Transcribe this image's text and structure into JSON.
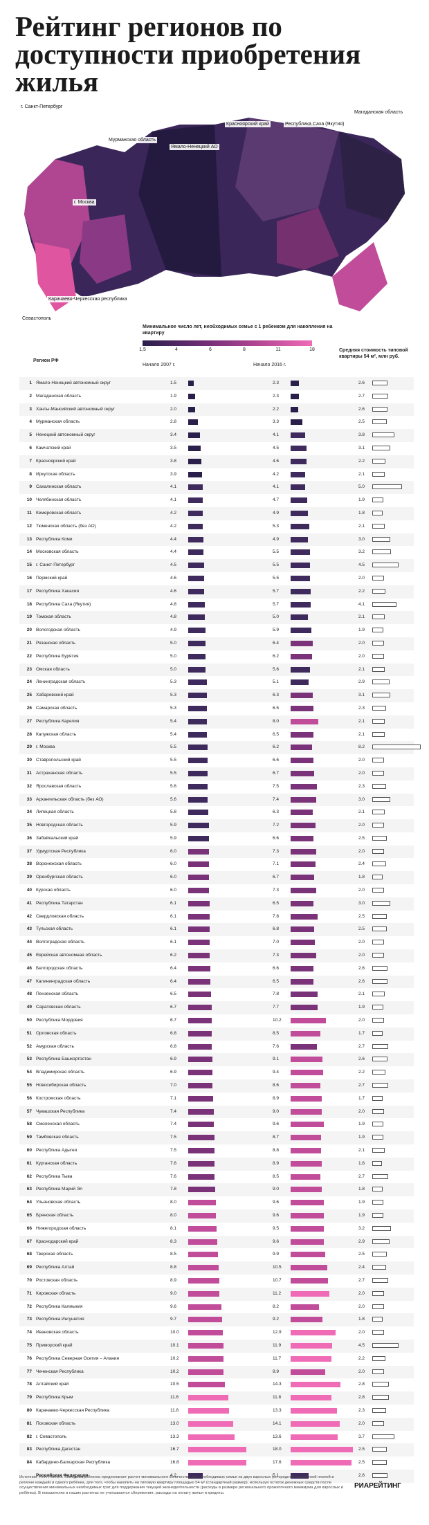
{
  "title": "Рейтинг регионов по доступности приобретения жилья",
  "map_labels": {
    "spb": "г. Санкт-Петербург",
    "murmansk": "Мурманская область",
    "yamal": "Ямало-Ненецкий АО",
    "krasnoyarsk": "Красноярский край",
    "sakha": "Республика Саха (Якутия)",
    "magadan": "Магаданская область",
    "moscow": "г. Москва",
    "karachay": "Карачаево-Черкесская республика",
    "sevastopol": "Севастополь"
  },
  "colors": {
    "dark": "#2a1f4a",
    "mid": "#6a2c72",
    "pink": "#e0559f",
    "light_pink": "#f06bb6"
  },
  "header": {
    "region": "Регион РФ",
    "years": "Минимальное число лет, необходимых семье с 1 ребенком для накопления на квартиру",
    "y2007": "Начало 2007 г.",
    "y2016": "Начало 2016 г.",
    "price": "Средняя стоимость типовой квартиры 54 м², млн руб.",
    "scale_ticks": [
      "1,5",
      "4",
      "6",
      "8",
      "11",
      "18"
    ]
  },
  "chart_data": {
    "type": "table",
    "rows": [
      {
        "n": "1",
        "region": "Ямало-Ненецкий автономный округ",
        "y2007": 1.5,
        "y2016": 2.3,
        "price": 2.6
      },
      {
        "n": "2",
        "region": "Магаданская область",
        "y2007": 1.9,
        "y2016": 2.3,
        "price": 2.7
      },
      {
        "n": "3",
        "region": "Ханты-Мансийский автономный округ",
        "y2007": 2.0,
        "y2016": 2.2,
        "price": 2.6
      },
      {
        "n": "4",
        "region": "Мурманская область",
        "y2007": 2.8,
        "y2016": 3.3,
        "price": 2.5
      },
      {
        "n": "5",
        "region": "Ненецкий автономный округ",
        "y2007": 3.4,
        "y2016": 4.1,
        "price": 3.8
      },
      {
        "n": "6",
        "region": "Камчатский край",
        "y2007": 3.5,
        "y2016": 4.5,
        "price": 3.1
      },
      {
        "n": "7",
        "region": "Красноярский край",
        "y2007": 3.8,
        "y2016": 4.6,
        "price": 2.2
      },
      {
        "n": "8",
        "region": "Иркутская область",
        "y2007": 3.9,
        "y2016": 4.2,
        "price": 2.1
      },
      {
        "n": "9",
        "region": "Сахалинская область",
        "y2007": 4.1,
        "y2016": 4.1,
        "price": 5.0
      },
      {
        "n": "10",
        "region": "Челябинская область",
        "y2007": 4.1,
        "y2016": 4.7,
        "price": 1.9
      },
      {
        "n": "11",
        "region": "Кемеровская область",
        "y2007": 4.2,
        "y2016": 4.9,
        "price": 1.8
      },
      {
        "n": "12",
        "region": "Тюменская область (без АО)",
        "y2007": 4.2,
        "y2016": 5.3,
        "price": 2.1
      },
      {
        "n": "13",
        "region": "Республика Коми",
        "y2007": 4.4,
        "y2016": 4.9,
        "price": 3.0
      },
      {
        "n": "14",
        "region": "Московская область",
        "y2007": 4.4,
        "y2016": 5.5,
        "price": 3.2
      },
      {
        "n": "15",
        "region": "г. Санкт-Петербург",
        "y2007": 4.5,
        "y2016": 5.5,
        "price": 4.5
      },
      {
        "n": "16",
        "region": "Пермский край",
        "y2007": 4.6,
        "y2016": 5.5,
        "price": 2.0
      },
      {
        "n": "17",
        "region": "Республика Хакасия",
        "y2007": 4.6,
        "y2016": 5.7,
        "price": 2.2
      },
      {
        "n": "18",
        "region": "Республика Саха (Якутия)",
        "y2007": 4.8,
        "y2016": 5.7,
        "price": 4.1
      },
      {
        "n": "19",
        "region": "Томская область",
        "y2007": 4.8,
        "y2016": 5.0,
        "price": 2.1
      },
      {
        "n": "20",
        "region": "Вологодская область",
        "y2007": 4.9,
        "y2016": 5.9,
        "price": 1.9
      },
      {
        "n": "21",
        "region": "Рязанская область",
        "y2007": 5.0,
        "y2016": 6.4,
        "price": 2.0
      },
      {
        "n": "22",
        "region": "Республика Бурятия",
        "y2007": 5.0,
        "y2016": 6.2,
        "price": 2.0
      },
      {
        "n": "23",
        "region": "Омская область",
        "y2007": 5.0,
        "y2016": 5.6,
        "price": 2.1
      },
      {
        "n": "24",
        "region": "Ленинградская область",
        "y2007": 5.3,
        "y2016": 5.1,
        "price": 2.9
      },
      {
        "n": "25",
        "region": "Хабаровский край",
        "y2007": 5.3,
        "y2016": 6.3,
        "price": 3.1
      },
      {
        "n": "26",
        "region": "Самарская область",
        "y2007": 5.3,
        "y2016": 6.5,
        "price": 2.3
      },
      {
        "n": "27",
        "region": "Республика Карелия",
        "y2007": 5.4,
        "y2016": 8.0,
        "price": 2.1
      },
      {
        "n": "28",
        "region": "Калужская область",
        "y2007": 5.4,
        "y2016": 6.5,
        "price": 2.1
      },
      {
        "n": "29",
        "region": "г. Москва",
        "y2007": 5.5,
        "y2016": 6.2,
        "price": 8.2
      },
      {
        "n": "30",
        "region": "Ставропольский край",
        "y2007": 5.5,
        "y2016": 6.6,
        "price": 2.0
      },
      {
        "n": "31",
        "region": "Астраханская область",
        "y2007": 5.5,
        "y2016": 6.7,
        "price": 2.0
      },
      {
        "n": "32",
        "region": "Ярославская область",
        "y2007": 5.6,
        "y2016": 7.5,
        "price": 2.3
      },
      {
        "n": "33",
        "region": "Архангельская область (без АО)",
        "y2007": 5.6,
        "y2016": 7.4,
        "price": 3.0
      },
      {
        "n": "34",
        "region": "Липецкая область",
        "y2007": 5.8,
        "y2016": 6.3,
        "price": 2.1
      },
      {
        "n": "35",
        "region": "Новгородская область",
        "y2007": 5.9,
        "y2016": 7.2,
        "price": 2.0
      },
      {
        "n": "36",
        "region": "Забайкальский край",
        "y2007": 5.9,
        "y2016": 6.6,
        "price": 2.5
      },
      {
        "n": "37",
        "region": "Удмуртская Республика",
        "y2007": 6.0,
        "y2016": 7.3,
        "price": 2.0
      },
      {
        "n": "38",
        "region": "Воронежская область",
        "y2007": 6.0,
        "y2016": 7.1,
        "price": 2.4
      },
      {
        "n": "39",
        "region": "Оренбургская область",
        "y2007": 6.0,
        "y2016": 6.7,
        "price": 1.8
      },
      {
        "n": "40",
        "region": "Курская область",
        "y2007": 6.0,
        "y2016": 7.3,
        "price": 2.0
      },
      {
        "n": "41",
        "region": "Республика Татарстан",
        "y2007": 6.1,
        "y2016": 6.5,
        "price": 3.0
      },
      {
        "n": "42",
        "region": "Свердловская область",
        "y2007": 6.1,
        "y2016": 7.8,
        "price": 2.5
      },
      {
        "n": "43",
        "region": "Тульская область",
        "y2007": 6.1,
        "y2016": 6.8,
        "price": 2.5
      },
      {
        "n": "44",
        "region": "Волгоградская область",
        "y2007": 6.1,
        "y2016": 7.0,
        "price": 2.0
      },
      {
        "n": "45",
        "region": "Еврейская автономная область",
        "y2007": 6.2,
        "y2016": 7.3,
        "price": 2.0
      },
      {
        "n": "46",
        "region": "Белгородская область",
        "y2007": 6.4,
        "y2016": 6.6,
        "price": 2.6
      },
      {
        "n": "47",
        "region": "Калининградская область",
        "y2007": 6.4,
        "y2016": 6.5,
        "price": 2.6
      },
      {
        "n": "48",
        "region": "Пензенская область",
        "y2007": 6.5,
        "y2016": 7.8,
        "price": 2.1
      },
      {
        "n": "49",
        "region": "Саратовская область",
        "y2007": 6.7,
        "y2016": 7.7,
        "price": 1.9
      },
      {
        "n": "50",
        "region": "Республика Мордовия",
        "y2007": 6.7,
        "y2016": 10.2,
        "price": 2.0
      },
      {
        "n": "51",
        "region": "Орловская область",
        "y2007": 6.8,
        "y2016": 8.5,
        "price": 1.7
      },
      {
        "n": "52",
        "region": "Амурская область",
        "y2007": 6.8,
        "y2016": 7.6,
        "price": 2.7
      },
      {
        "n": "53",
        "region": "Республика Башкортостан",
        "y2007": 6.9,
        "y2016": 9.1,
        "price": 2.6
      },
      {
        "n": "54",
        "region": "Владимирская область",
        "y2007": 6.9,
        "y2016": 9.4,
        "price": 2.2
      },
      {
        "n": "55",
        "region": "Новосибирская область",
        "y2007": 7.0,
        "y2016": 8.6,
        "price": 2.7
      },
      {
        "n": "56",
        "region": "Костромская область",
        "y2007": 7.1,
        "y2016": 8.9,
        "price": 1.7
      },
      {
        "n": "57",
        "region": "Чувашская Республика",
        "y2007": 7.4,
        "y2016": 9.0,
        "price": 2.0
      },
      {
        "n": "58",
        "region": "Смоленская область",
        "y2007": 7.4,
        "y2016": 9.6,
        "price": 1.9
      },
      {
        "n": "59",
        "region": "Тамбовская область",
        "y2007": 7.5,
        "y2016": 8.7,
        "price": 1.9
      },
      {
        "n": "60",
        "region": "Республика Адыгея",
        "y2007": 7.5,
        "y2016": 8.8,
        "price": 2.1
      },
      {
        "n": "61",
        "region": "Курганская область",
        "y2007": 7.6,
        "y2016": 8.9,
        "price": 1.6
      },
      {
        "n": "62",
        "region": "Республика Тыва",
        "y2007": 7.6,
        "y2016": 8.5,
        "price": 2.7
      },
      {
        "n": "63",
        "region": "Республика Марий Эл",
        "y2007": 7.8,
        "y2016": 9.0,
        "price": 1.8
      },
      {
        "n": "64",
        "region": "Ульяновская область",
        "y2007": 8.0,
        "y2016": 9.6,
        "price": 1.9
      },
      {
        "n": "65",
        "region": "Брянская область",
        "y2007": 8.0,
        "y2016": 9.6,
        "price": 1.9
      },
      {
        "n": "66",
        "region": "Нижегородская область",
        "y2007": 8.1,
        "y2016": 9.5,
        "price": 3.2
      },
      {
        "n": "67",
        "region": "Краснодарский край",
        "y2007": 8.3,
        "y2016": 9.6,
        "price": 2.9
      },
      {
        "n": "68",
        "region": "Тверская область",
        "y2007": 8.5,
        "y2016": 9.9,
        "price": 2.5
      },
      {
        "n": "69",
        "region": "Республика Алтай",
        "y2007": 8.8,
        "y2016": 10.5,
        "price": 2.4
      },
      {
        "n": "70",
        "region": "Ростовская область",
        "y2007": 8.9,
        "y2016": 10.7,
        "price": 2.7
      },
      {
        "n": "71",
        "region": "Кировская область",
        "y2007": 9.0,
        "y2016": 11.2,
        "price": 2.0
      },
      {
        "n": "72",
        "region": "Республика Калмыкия",
        "y2007": 9.6,
        "y2016": 8.2,
        "price": 2.0
      },
      {
        "n": "73",
        "region": "Республика Ингушетия",
        "y2007": 9.7,
        "y2016": 9.2,
        "price": 1.8
      },
      {
        "n": "74",
        "region": "Ивановская область",
        "y2007": 10.0,
        "y2016": 12.9,
        "price": 2.0
      },
      {
        "n": "75",
        "region": "Приморский край",
        "y2007": 10.1,
        "y2016": 11.9,
        "price": 4.5
      },
      {
        "n": "76",
        "region": "Республика Северная Осетия – Алания",
        "y2007": 10.2,
        "y2016": 11.7,
        "price": 2.2
      },
      {
        "n": "77",
        "region": "Чеченская Республика",
        "y2007": 10.2,
        "y2016": 9.9,
        "price": 2.0
      },
      {
        "n": "78",
        "region": "Алтайский край",
        "y2007": 10.5,
        "y2016": 14.3,
        "price": 2.8
      },
      {
        "n": "79",
        "region": "Республика Крым",
        "y2007": 11.6,
        "y2016": 11.8,
        "price": 2.8
      },
      {
        "n": "80",
        "region": "Карачаево-Черкесская Республика",
        "y2007": 11.8,
        "y2016": 13.3,
        "price": 2.3
      },
      {
        "n": "81",
        "region": "Псковская область",
        "y2007": 13.0,
        "y2016": 14.1,
        "price": 2.0
      },
      {
        "n": "82",
        "region": "г. Севастополь",
        "y2007": 13.3,
        "y2016": 13.6,
        "price": 3.7
      },
      {
        "n": "83",
        "region": "Республика Дагестан",
        "y2007": 16.7,
        "y2016": 18.0,
        "price": 2.5
      },
      {
        "n": "84",
        "region": "Кабардино-Балкарская Республика",
        "y2007": 16.8,
        "y2016": 17.6,
        "price": 2.5
      },
      {
        "n": "",
        "region": "Российская Федерация",
        "y2007": 4.2,
        "y2016": 5.1,
        "price": 2.6
      }
    ]
  },
  "footnote": "Источник: РИА Рейтинг. Методика рейтинга предполагает расчет минимального количества лет, необходимых семье из двух взрослых (со средней заработной платой в регионе каждый) и одного ребёнка, для того, чтобы накопить на типовую квартиру площадью 54 м² (стандартный размер), используя остаток денежных средств после осуществления минимальных необходимых трат для поддержания текущей жизнедеятельности (расходы в размере регионального прожиточного минимума для взрослых и ребёнка). В показателях в наших расчетах не учитываются сбережения, расходы на оплату жилья и кредиты.",
  "logo": "РИАРЕЙТИНГ"
}
